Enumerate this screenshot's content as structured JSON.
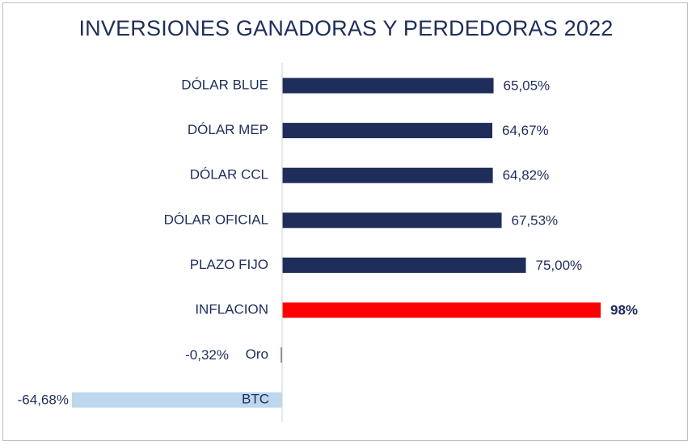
{
  "chart_data": {
    "type": "bar",
    "orientation": "horizontal",
    "title": "INVERSIONES GANADORAS Y PERDEDORAS 2022",
    "categories": [
      "DÓLAR BLUE",
      "DÓLAR MEP",
      "DÓLAR CCL",
      "DÓLAR OFICIAL",
      "PLAZO FIJO",
      "INFLACION",
      "Oro",
      "BTC"
    ],
    "values": [
      65.05,
      64.67,
      64.82,
      67.53,
      75.0,
      98,
      -0.32,
      -64.68
    ],
    "labels": [
      "65,05%",
      "64,67%",
      "64,82%",
      "67,53%",
      "75,00%",
      "98%",
      "-0,32%",
      "-64,68%"
    ],
    "bar_colors": [
      "#1f2d5a",
      "#1f2d5a",
      "#1f2d5a",
      "#1f2d5a",
      "#1f2d5a",
      "#ff0000",
      "#1f2d5a",
      "#bdd7ee"
    ],
    "label_colors": [
      "#1f2d5a",
      "#1f2d5a",
      "#1f2d5a",
      "#1f2d5a",
      "#1f2d5a",
      "#e00000",
      "#1f2d5a",
      "#1f2d5a"
    ],
    "label_bold": [
      false,
      false,
      false,
      false,
      false,
      true,
      false,
      false
    ],
    "xlim": [
      -65,
      100
    ],
    "grid": false,
    "legend": "none"
  }
}
